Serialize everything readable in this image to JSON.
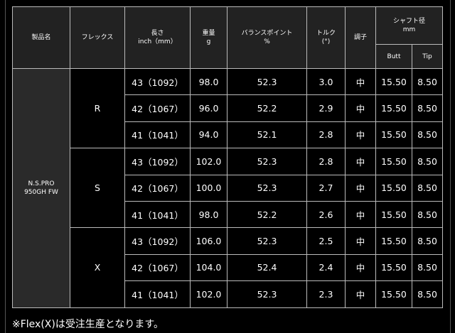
{
  "headers": {
    "product": "製品名",
    "flex": "フレックス",
    "length": "長さ",
    "length_unit": "inch（mm）",
    "weight": "重量",
    "weight_unit": "g",
    "balance": "バランスポイント",
    "balance_unit": "%",
    "torque": "トルク",
    "torque_unit": "(°)",
    "kick": "調子",
    "diameter": "シャフト径",
    "diameter_unit": "mm",
    "butt": "Butt",
    "tip": "Tip"
  },
  "product": {
    "line1": "N.S.PRO",
    "line2": "950GH FW"
  },
  "groups": [
    {
      "flex": "R",
      "rows": [
        {
          "length": "43（1092）",
          "weight": "98.0",
          "balance": "52.3",
          "torque": "3.0",
          "kick": "中",
          "butt": "15.50",
          "tip": "8.50"
        },
        {
          "length": "42（1067）",
          "weight": "96.0",
          "balance": "52.2",
          "torque": "2.9",
          "kick": "中",
          "butt": "15.50",
          "tip": "8.50"
        },
        {
          "length": "41（1041）",
          "weight": "94.0",
          "balance": "52.1",
          "torque": "2.8",
          "kick": "中",
          "butt": "15.50",
          "tip": "8.50"
        }
      ]
    },
    {
      "flex": "S",
      "rows": [
        {
          "length": "43（1092）",
          "weight": "102.0",
          "balance": "52.3",
          "torque": "2.8",
          "kick": "中",
          "butt": "15.50",
          "tip": "8.50"
        },
        {
          "length": "42（1067）",
          "weight": "100.0",
          "balance": "52.3",
          "torque": "2.7",
          "kick": "中",
          "butt": "15.50",
          "tip": "8.50"
        },
        {
          "length": "41（1041）",
          "weight": "98.0",
          "balance": "52.2",
          "torque": "2.6",
          "kick": "中",
          "butt": "15.50",
          "tip": "8.50"
        }
      ]
    },
    {
      "flex": "X",
      "rows": [
        {
          "length": "43（1092）",
          "weight": "106.0",
          "balance": "52.3",
          "torque": "2.5",
          "kick": "中",
          "butt": "15.50",
          "tip": "8.50"
        },
        {
          "length": "42（1067）",
          "weight": "104.0",
          "balance": "52.4",
          "torque": "2.4",
          "kick": "中",
          "butt": "15.50",
          "tip": "8.50"
        },
        {
          "length": "41（1041）",
          "weight": "102.0",
          "balance": "52.3",
          "torque": "2.3",
          "kick": "中",
          "butt": "15.50",
          "tip": "8.50"
        }
      ]
    }
  ],
  "note": "※Flex(X)は受注生産となります。"
}
